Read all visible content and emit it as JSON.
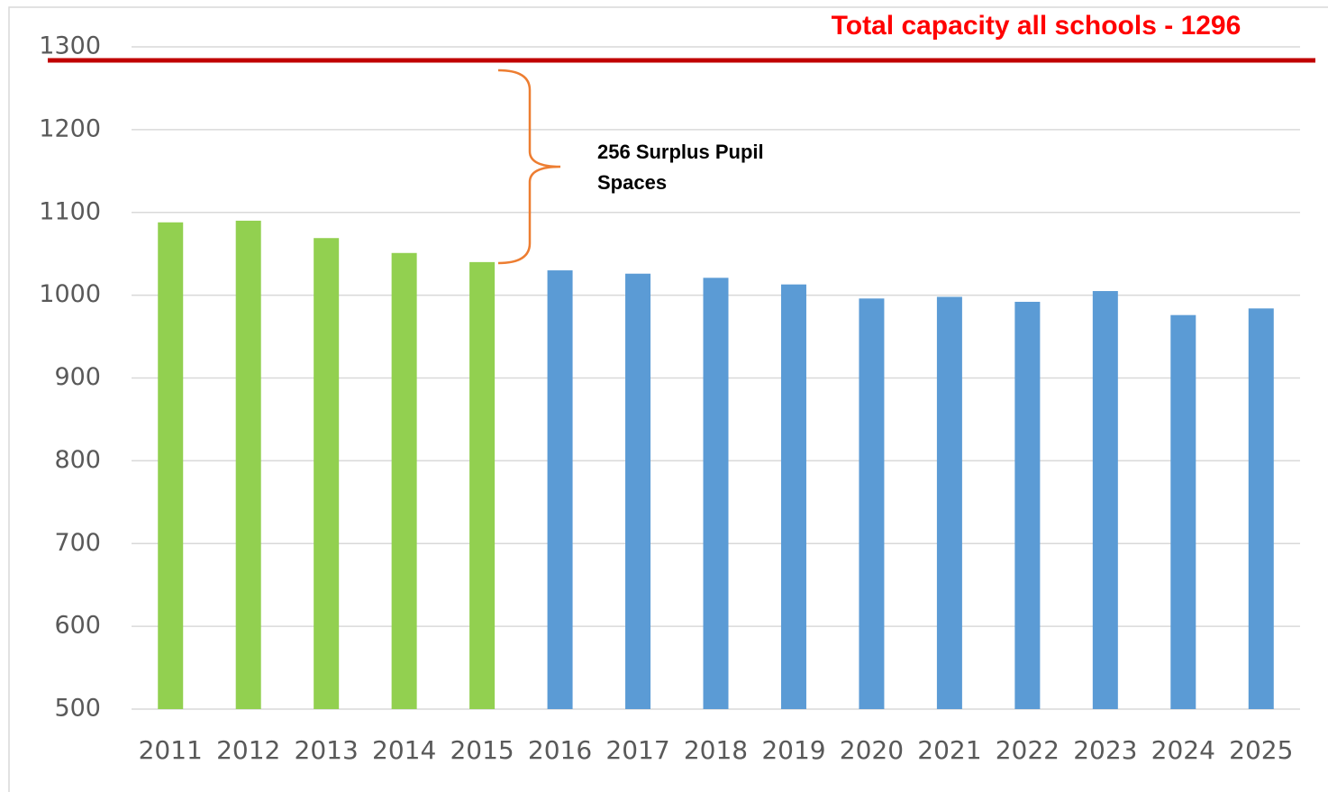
{
  "chart_data": {
    "type": "bar",
    "title": "Total capacity all schools - 1296",
    "annotation": "256 Surplus Pupil Spaces",
    "categories": [
      "2011",
      "2012",
      "2013",
      "2014",
      "2015",
      "2016",
      "2017",
      "2018",
      "2019",
      "2020",
      "2021",
      "2022",
      "2023",
      "2024",
      "2025"
    ],
    "values": [
      1088,
      1090,
      1069,
      1051,
      1040,
      1030,
      1026,
      1021,
      1013,
      996,
      998,
      992,
      1005,
      976,
      984
    ],
    "colors": [
      "#92d050",
      "#92d050",
      "#92d050",
      "#92d050",
      "#92d050",
      "#5b9bd5",
      "#5b9bd5",
      "#5b9bd5",
      "#5b9bd5",
      "#5b9bd5",
      "#5b9bd5",
      "#5b9bd5",
      "#5b9bd5",
      "#5b9bd5",
      "#5b9bd5"
    ],
    "ylim": [
      500,
      1300
    ],
    "yticks": [
      500,
      600,
      700,
      800,
      900,
      1000,
      1100,
      1200,
      1300
    ],
    "grid": true
  }
}
